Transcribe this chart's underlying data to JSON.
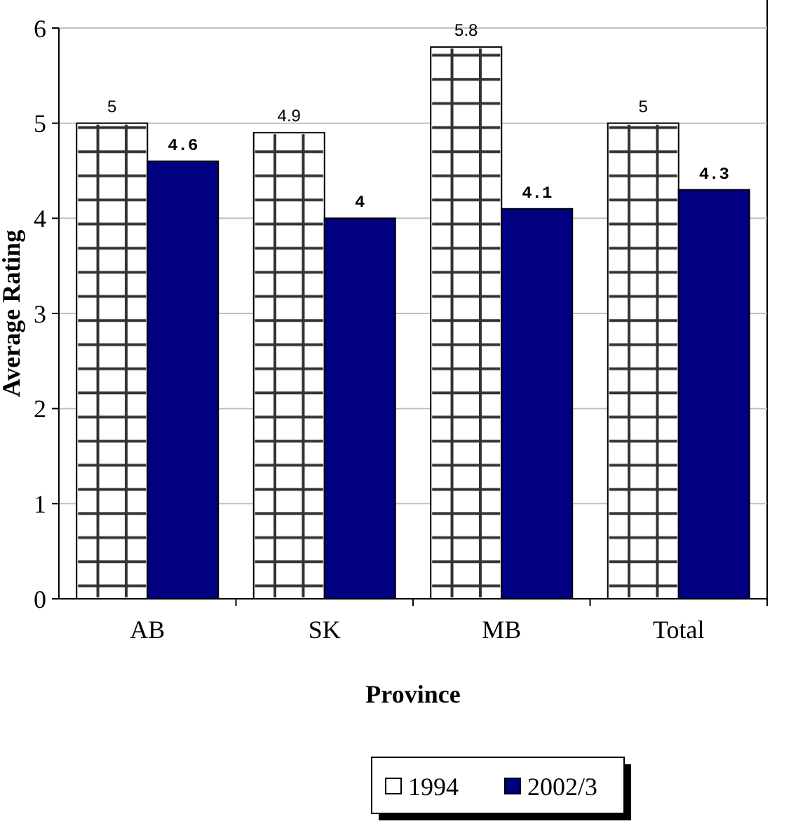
{
  "chart_data": {
    "type": "bar",
    "xlabel": "Province",
    "ylabel": "Average Rating",
    "categories": [
      "AB",
      "SK",
      "MB",
      "Total"
    ],
    "series": [
      {
        "name": "1994",
        "color": "#ffffff",
        "values": [
          5,
          4.9,
          5.8,
          5
        ]
      },
      {
        "name": "2002/3",
        "color": "#000080",
        "values": [
          4.6,
          4,
          4.1,
          4.3
        ]
      }
    ],
    "ylim": [
      0,
      6
    ],
    "yticks": [
      0,
      1,
      2,
      3,
      4,
      5,
      6
    ],
    "grid": "y",
    "legend": "bottom",
    "data_labels": true
  }
}
